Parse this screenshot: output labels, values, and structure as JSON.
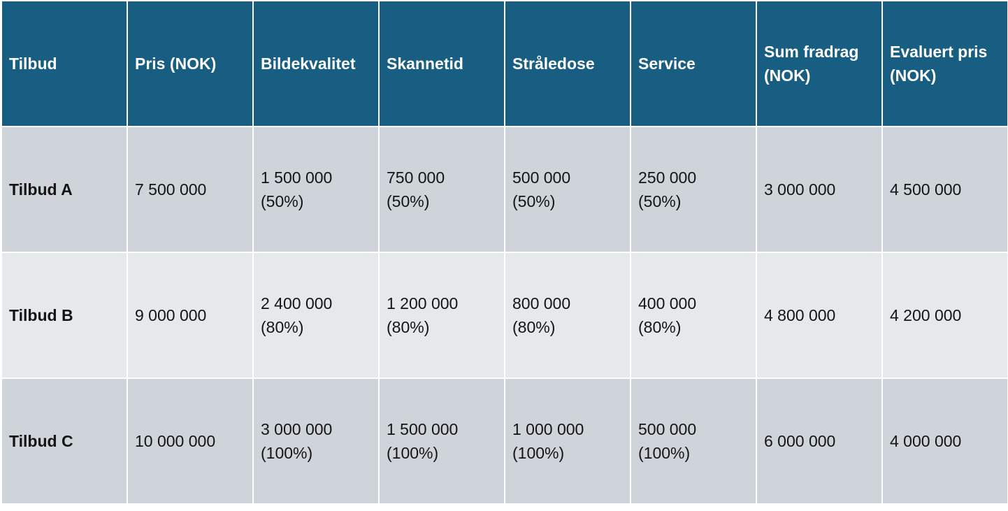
{
  "table": {
    "headers": [
      [
        "Tilbud"
      ],
      [
        "Pris (NOK)"
      ],
      [
        "Bildekvalitet"
      ],
      [
        "Skannetid"
      ],
      [
        "Stråledose"
      ],
      [
        "Service"
      ],
      [
        "Sum fradrag",
        "(NOK)"
      ],
      [
        "Evaluert pris",
        "(NOK)"
      ]
    ],
    "rows": [
      {
        "name": "Tilbud A",
        "pris": "7 500 000",
        "bildekvalitet": [
          "1 500 000",
          "(50%)"
        ],
        "skannetid": [
          "750 000",
          "(50%)"
        ],
        "straledose": [
          "500 000",
          "(50%)"
        ],
        "service": [
          "250 000",
          "(50%)"
        ],
        "sum_fradrag": "3 000 000",
        "evaluert_pris": "4 500 000"
      },
      {
        "name": "Tilbud B",
        "pris": "9 000 000",
        "bildekvalitet": [
          "2 400 000",
          "(80%)"
        ],
        "skannetid": [
          "1 200 000",
          "(80%)"
        ],
        "straledose": [
          "800 000",
          "(80%)"
        ],
        "service": [
          "400 000",
          "(80%)"
        ],
        "sum_fradrag": "4 800 000",
        "evaluert_pris": "4 200 000"
      },
      {
        "name": "Tilbud C",
        "pris": "10 000 000",
        "bildekvalitet": [
          "3 000 000",
          "(100%)"
        ],
        "skannetid": [
          "1 500 000",
          "(100%)"
        ],
        "straledose": [
          "1 000 000",
          "(100%)"
        ],
        "service": [
          "500 000",
          "(100%)"
        ],
        "sum_fradrag": "6 000 000",
        "evaluert_pris": "4 000 000"
      }
    ]
  }
}
